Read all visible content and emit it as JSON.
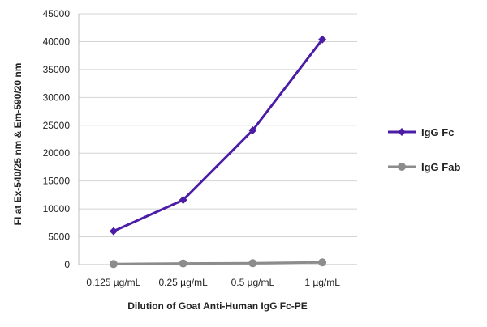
{
  "chart_data": {
    "type": "line",
    "categories": [
      "0.125 µg/mL",
      "0.25 µg/mL",
      "0.5 µg/mL",
      "1 µg/mL"
    ],
    "series": [
      {
        "name": "IgG Fc",
        "values": [
          6000,
          11600,
          24100,
          40400
        ],
        "color": "#4b1ca6",
        "marker": "diamond"
      },
      {
        "name": "IgG Fab",
        "values": [
          100,
          200,
          250,
          400
        ],
        "color": "#8c8c8c",
        "marker": "circle"
      }
    ],
    "xlabel": "Dilution of Goat Anti-Human IgG Fc-PE",
    "ylabel": "FI at Ex-540/25 nm & Em-590/20 nm",
    "ylim": [
      0,
      45000
    ],
    "yticks": [
      0,
      5000,
      10000,
      15000,
      20000,
      25000,
      30000,
      35000,
      40000,
      45000
    ],
    "grid": true,
    "legend": "right"
  }
}
